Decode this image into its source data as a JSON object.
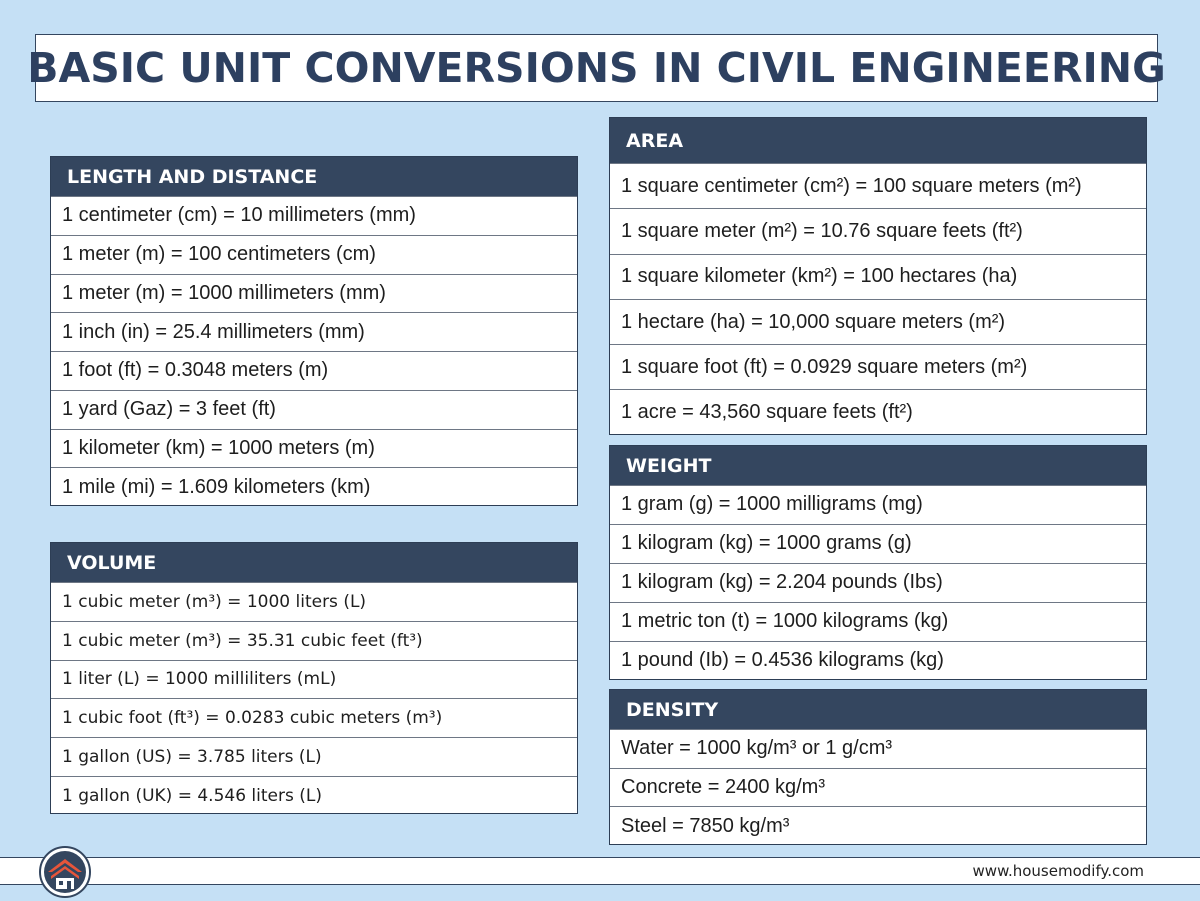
{
  "title": "BASIC UNIT CONVERSIONS IN CIVIL ENGINEERING",
  "sections": {
    "length": {
      "heading": "LENGTH AND DISTANCE",
      "rows": [
        "1 centimeter (cm) = 10 millimeters (mm)",
        "1 meter (m) = 100 centimeters (cm)",
        "1 meter (m) = 1000 millimeters (mm)",
        "1 inch (in) = 25.4 millimeters (mm)",
        "1 foot (ft) = 0.3048 meters (m)",
        "1 yard (Gaz) = 3 feet (ft)",
        "1 kilometer (km) = 1000 meters (m)",
        "1 mile (mi) = 1.609 kilometers (km)"
      ]
    },
    "volume": {
      "heading": "VOLUME",
      "rows": [
        "1 cubic meter (m³) = 1000 liters (L)",
        "1 cubic meter (m³) = 35.31 cubic feet (ft³)",
        "1 liter (L) = 1000 milliliters (mL)",
        "1 cubic foot (ft³) = 0.0283 cubic meters (m³)",
        "1 gallon (US) = 3.785 liters (L)",
        "1 gallon (UK) = 4.546 liters (L)"
      ]
    },
    "area": {
      "heading": "AREA",
      "rows": [
        "1 square centimeter (cm²) = 100 square meters (m²)",
        "1 square meter (m²) = 10.76 square feets (ft²)",
        "1 square kilometer (km²) = 100 hectares (ha)",
        "1 hectare (ha) = 10,000 square meters (m²)",
        "1 square foot (ft) = 0.0929 square meters (m²)",
        "1 acre = 43,560 square feets (ft²)"
      ]
    },
    "weight": {
      "heading": "WEIGHT",
      "rows": [
        "1 gram (g) = 1000 milligrams (mg)",
        "1 kilogram (kg) = 1000 grams (g)",
        "1 kilogram (kg) = 2.204 pounds (Ibs)",
        "1 metric ton (t) = 1000 kilograms (kg)",
        "1 pound (Ib) = 0.4536 kilograms (kg)"
      ]
    },
    "density": {
      "heading": "DENSITY",
      "rows": [
        "Water = 1000 kg/m³ or 1 g/cm³",
        "Concrete = 2400 kg/m³",
        "Steel = 7850 kg/m³"
      ]
    }
  },
  "footer": {
    "url": "www.housemodify.com"
  },
  "colors": {
    "background": "#c5e0f5",
    "header": "#34465f",
    "title_text": "#2d4060",
    "logo_orange": "#e8553a"
  }
}
